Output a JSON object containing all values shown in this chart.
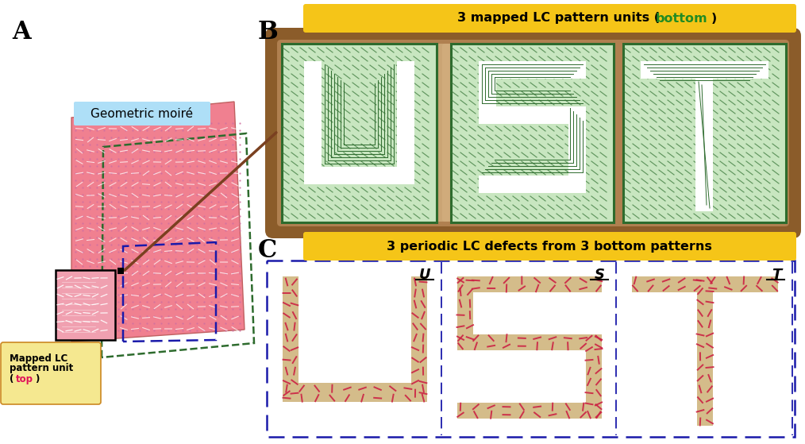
{
  "fig_width": 10.14,
  "fig_height": 5.59,
  "bg_color": "#ffffff",
  "label_A": "A",
  "label_B": "B",
  "label_C": "C",
  "geo_moire_text": "Geometric moiré",
  "geo_moire_bg": "#aedff7",
  "panel_BC_title_bg": "#f5c518",
  "panel_B_title_bold_color": "#228B22",
  "panel_C_title": "3 periodic LC defects from 3 bottom patterns",
  "pink_color": "#f08090",
  "green_border": "#2d6b2d",
  "green_fill": "#c8e6c0",
  "mapped_lc_bold_color": "#e0105a",
  "blue_dash_color": "#1a1aaa",
  "tan_color": "#d4bc8a",
  "red_dash_color": "#cc2244",
  "brown_color": "#8B5C2A"
}
